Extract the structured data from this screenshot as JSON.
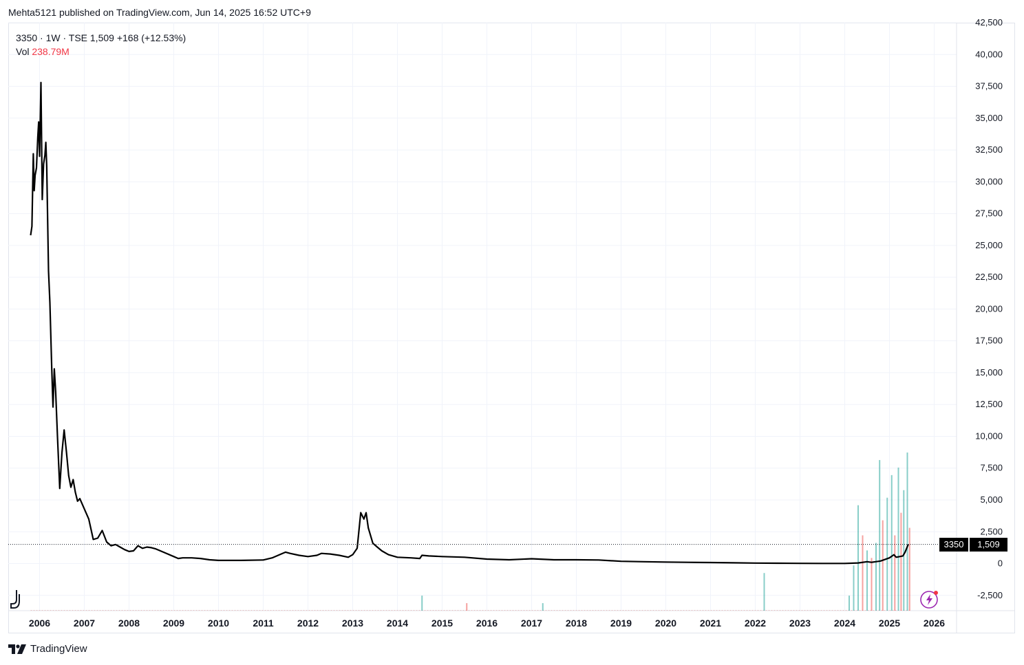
{
  "header": {
    "published": "Mehta5121 published on TradingView.com, Jun 14, 2025 16:52 UTC+9"
  },
  "legend": {
    "line1": "3350 · 1W · TSE  1,509  +168 (+12.53%)",
    "vol_label": "Vol",
    "vol_value": "238.79M"
  },
  "price_tag": {
    "symbol": "3350",
    "price": "1,509"
  },
  "footer": {
    "brand": "TradingView"
  },
  "icons": [
    "tradingview-logo-icon",
    "chart-tool-icon",
    "bolt-icon"
  ],
  "colors": {
    "line": "#000000",
    "vol_up": "#26a69a",
    "vol_down": "#ef5350",
    "grid": "#f0f3fa",
    "axis_text": "#131722"
  },
  "chart_data": {
    "type": "line",
    "series": [
      {
        "points": [
          [
            2005.8,
            25800
          ],
          [
            2005.83,
            26500
          ],
          [
            2005.86,
            32200
          ],
          [
            2005.88,
            29300
          ],
          [
            2005.9,
            30500
          ],
          [
            2005.93,
            31100
          ],
          [
            2005.96,
            33500
          ],
          [
            2005.98,
            34700
          ],
          [
            2006.0,
            32000
          ],
          [
            2006.03,
            37800
          ],
          [
            2006.06,
            28600
          ],
          [
            2006.09,
            31400
          ],
          [
            2006.12,
            32100
          ],
          [
            2006.14,
            33100
          ],
          [
            2006.16,
            31200
          ],
          [
            2006.2,
            23000
          ],
          [
            2006.23,
            20500
          ],
          [
            2006.27,
            15500
          ],
          [
            2006.3,
            12300
          ],
          [
            2006.33,
            15300
          ],
          [
            2006.36,
            13500
          ],
          [
            2006.4,
            10000
          ],
          [
            2006.45,
            5900
          ],
          [
            2006.5,
            8700
          ],
          [
            2006.55,
            10500
          ],
          [
            2006.6,
            8800
          ],
          [
            2006.65,
            6900
          ],
          [
            2006.7,
            6000
          ],
          [
            2006.75,
            6600
          ],
          [
            2006.8,
            5600
          ],
          [
            2006.85,
            4900
          ],
          [
            2006.9,
            5100
          ],
          [
            2007.0,
            4300
          ],
          [
            2007.1,
            3500
          ],
          [
            2007.2,
            1900
          ],
          [
            2007.3,
            2000
          ],
          [
            2007.4,
            2600
          ],
          [
            2007.5,
            1700
          ],
          [
            2007.6,
            1400
          ],
          [
            2007.7,
            1500
          ],
          [
            2007.8,
            1300
          ],
          [
            2007.9,
            1100
          ],
          [
            2008.0,
            950
          ],
          [
            2008.1,
            1000
          ],
          [
            2008.2,
            1400
          ],
          [
            2008.3,
            1200
          ],
          [
            2008.4,
            1300
          ],
          [
            2008.5,
            1250
          ],
          [
            2008.6,
            1150
          ],
          [
            2008.7,
            1000
          ],
          [
            2008.8,
            850
          ],
          [
            2009.0,
            550
          ],
          [
            2009.1,
            400
          ],
          [
            2009.2,
            450
          ],
          [
            2009.4,
            450
          ],
          [
            2009.6,
            400
          ],
          [
            2009.8,
            300
          ],
          [
            2010.0,
            250
          ],
          [
            2010.5,
            250
          ],
          [
            2011.0,
            280
          ],
          [
            2011.2,
            450
          ],
          [
            2011.4,
            750
          ],
          [
            2011.5,
            900
          ],
          [
            2011.6,
            800
          ],
          [
            2011.8,
            650
          ],
          [
            2012.0,
            550
          ],
          [
            2012.2,
            650
          ],
          [
            2012.3,
            800
          ],
          [
            2012.5,
            750
          ],
          [
            2012.7,
            650
          ],
          [
            2012.9,
            500
          ],
          [
            2013.0,
            700
          ],
          [
            2013.1,
            1200
          ],
          [
            2013.18,
            4000
          ],
          [
            2013.25,
            3500
          ],
          [
            2013.3,
            4000
          ],
          [
            2013.35,
            2800
          ],
          [
            2013.45,
            1600
          ],
          [
            2013.55,
            1300
          ],
          [
            2013.65,
            1000
          ],
          [
            2013.8,
            700
          ],
          [
            2014.0,
            500
          ],
          [
            2014.3,
            450
          ],
          [
            2014.5,
            400
          ],
          [
            2014.55,
            650
          ],
          [
            2014.7,
            600
          ],
          [
            2015.0,
            550
          ],
          [
            2015.5,
            500
          ],
          [
            2016.0,
            350
          ],
          [
            2016.5,
            300
          ],
          [
            2017.0,
            380
          ],
          [
            2017.5,
            300
          ],
          [
            2018.0,
            300
          ],
          [
            2018.5,
            280
          ],
          [
            2019.0,
            180
          ],
          [
            2019.5,
            150
          ],
          [
            2020.0,
            120
          ],
          [
            2020.5,
            100
          ],
          [
            2021.0,
            80
          ],
          [
            2021.5,
            60
          ],
          [
            2022.0,
            40
          ],
          [
            2022.5,
            30
          ],
          [
            2023.0,
            20
          ],
          [
            2023.5,
            10
          ],
          [
            2024.0,
            10
          ],
          [
            2024.3,
            50
          ],
          [
            2024.5,
            150
          ],
          [
            2024.6,
            100
          ],
          [
            2024.8,
            200
          ],
          [
            2025.0,
            450
          ],
          [
            2025.1,
            700
          ],
          [
            2025.15,
            500
          ],
          [
            2025.3,
            600
          ],
          [
            2025.35,
            900
          ],
          [
            2025.42,
            1509
          ]
        ]
      }
    ],
    "volume": [
      [
        2014.55,
        2,
        "up"
      ],
      [
        2015.55,
        1,
        "down"
      ],
      [
        2017.25,
        1,
        "up"
      ],
      [
        2022.2,
        5,
        "up"
      ],
      [
        2024.1,
        2,
        "up"
      ],
      [
        2024.2,
        6,
        "up"
      ],
      [
        2024.3,
        14,
        "up"
      ],
      [
        2024.4,
        10,
        "down"
      ],
      [
        2024.5,
        8,
        "up"
      ],
      [
        2024.6,
        7,
        "down"
      ],
      [
        2024.7,
        9,
        "up"
      ],
      [
        2024.78,
        20,
        "up"
      ],
      [
        2024.85,
        12,
        "down"
      ],
      [
        2024.95,
        15,
        "up"
      ],
      [
        2025.05,
        18,
        "up"
      ],
      [
        2025.12,
        10,
        "down"
      ],
      [
        2025.2,
        19,
        "up"
      ],
      [
        2025.26,
        13,
        "down"
      ],
      [
        2025.32,
        16,
        "up"
      ],
      [
        2025.4,
        21,
        "up"
      ],
      [
        2025.45,
        11,
        "down"
      ]
    ],
    "x_ticks": [
      "2006",
      "2007",
      "2008",
      "2009",
      "2010",
      "2011",
      "2012",
      "2013",
      "2014",
      "2015",
      "2016",
      "2017",
      "2018",
      "2019",
      "2020",
      "2021",
      "2022",
      "2023",
      "2024",
      "2025",
      "2026"
    ],
    "y_ticks": [
      "-2,500",
      "0",
      "2,500",
      "5,000",
      "7,500",
      "10,000",
      "12,500",
      "15,000",
      "17,500",
      "20,000",
      "22,500",
      "25,000",
      "27,500",
      "30,000",
      "32,500",
      "35,000",
      "37,500",
      "40,000",
      "42,500"
    ],
    "xlim": [
      2005.3,
      2026.5
    ],
    "ylim": [
      -3700,
      42500
    ],
    "current_price": 1509,
    "grid": true
  }
}
